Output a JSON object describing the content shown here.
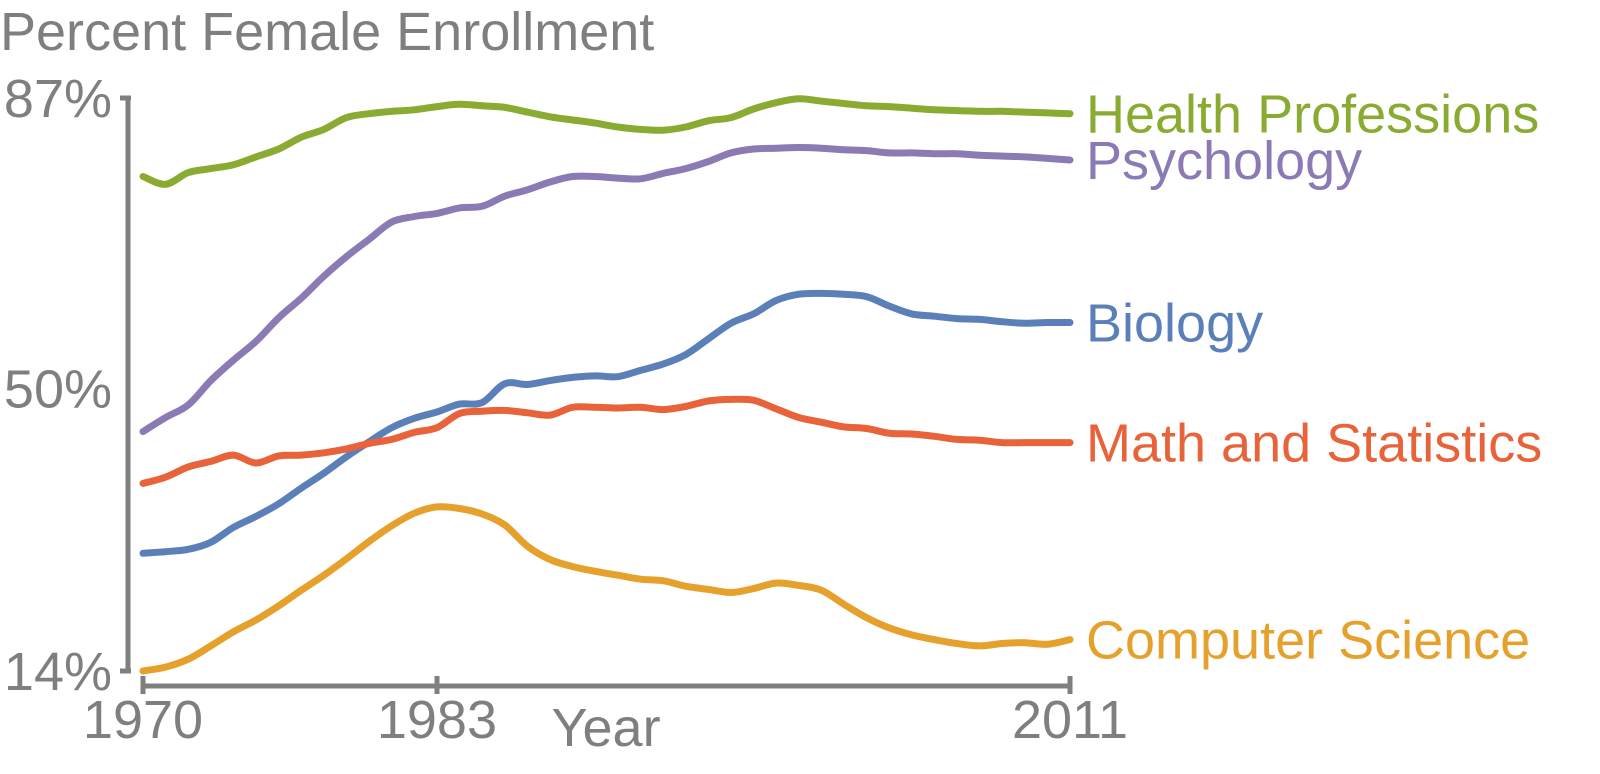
{
  "chart_data": {
    "type": "line",
    "title": "Percent Female Enrollment",
    "xlabel": "Year",
    "ylabel": "",
    "xlim": [
      1970,
      2011
    ],
    "ylim": [
      14,
      87
    ],
    "x_ticks": [
      1970,
      1983,
      2011
    ],
    "y_ticks": [
      {
        "value": 87,
        "label": "87%"
      },
      {
        "value": 50,
        "label": "50%"
      },
      {
        "value": 14,
        "label": "14%"
      }
    ],
    "grid": false,
    "legend": "labels at line ends (right)",
    "x": [
      1970,
      1971,
      1972,
      1973,
      1974,
      1975,
      1976,
      1977,
      1978,
      1979,
      1980,
      1981,
      1982,
      1983,
      1984,
      1985,
      1986,
      1987,
      1988,
      1989,
      1990,
      1991,
      1992,
      1993,
      1994,
      1995,
      1996,
      1997,
      1998,
      1999,
      2000,
      2001,
      2002,
      2003,
      2004,
      2005,
      2006,
      2007,
      2008,
      2009,
      2010,
      2011
    ],
    "series": [
      {
        "name": "Health Professions",
        "color": "#8aab32",
        "values": [
          77.0,
          76.0,
          77.5,
          78.0,
          78.5,
          79.5,
          80.5,
          82.0,
          83.0,
          84.5,
          85.0,
          85.3,
          85.5,
          85.9,
          86.2,
          86.0,
          85.8,
          85.2,
          84.6,
          84.2,
          83.8,
          83.3,
          83.0,
          82.9,
          83.3,
          84.1,
          84.5,
          85.6,
          86.4,
          86.9,
          86.6,
          86.3,
          86.0,
          85.9,
          85.7,
          85.5,
          85.4,
          85.3,
          85.3,
          85.2,
          85.1,
          85.0
        ]
      },
      {
        "name": "Psychology",
        "color": "#8c7ab5",
        "values": [
          44.5,
          46.3,
          47.9,
          51.0,
          53.6,
          56.0,
          59.0,
          61.5,
          64.3,
          66.8,
          69.0,
          71.2,
          71.9,
          72.3,
          73.0,
          73.2,
          74.5,
          75.3,
          76.3,
          77.0,
          77.0,
          76.8,
          76.7,
          77.4,
          78.0,
          78.9,
          80.0,
          80.5,
          80.6,
          80.7,
          80.6,
          80.4,
          80.3,
          80.0,
          80.0,
          79.9,
          79.9,
          79.7,
          79.6,
          79.5,
          79.3,
          79.1
        ]
      },
      {
        "name": "Biology",
        "color": "#5b80b9",
        "values": [
          29.0,
          29.2,
          29.5,
          30.4,
          32.3,
          33.7,
          35.3,
          37.3,
          39.2,
          41.3,
          43.2,
          45.0,
          46.2,
          47.0,
          48.0,
          48.2,
          50.6,
          50.5,
          51.0,
          51.4,
          51.6,
          51.5,
          52.3,
          53.1,
          54.3,
          56.3,
          58.3,
          59.5,
          61.2,
          62.0,
          62.1,
          62.0,
          61.7,
          60.5,
          59.5,
          59.2,
          58.9,
          58.8,
          58.5,
          58.3,
          58.4,
          58.4
        ]
      },
      {
        "name": "Math and Statistics",
        "color": "#e8623a",
        "values": [
          37.9,
          38.7,
          40.0,
          40.7,
          41.5,
          40.5,
          41.4,
          41.5,
          41.8,
          42.3,
          43.0,
          43.5,
          44.4,
          45.0,
          46.8,
          47.1,
          47.2,
          46.9,
          46.6,
          47.6,
          47.6,
          47.5,
          47.6,
          47.3,
          47.7,
          48.4,
          48.6,
          48.5,
          47.4,
          46.3,
          45.7,
          45.1,
          44.9,
          44.3,
          44.2,
          43.9,
          43.5,
          43.4,
          43.1,
          43.1,
          43.1,
          43.1
        ]
      },
      {
        "name": "Computer Science",
        "color": "#e5a12c",
        "values": [
          14.0,
          14.5,
          15.5,
          17.2,
          19.0,
          20.5,
          22.3,
          24.3,
          26.2,
          28.3,
          30.5,
          32.5,
          34.1,
          34.9,
          34.7,
          34.0,
          32.6,
          29.9,
          28.2,
          27.3,
          26.7,
          26.2,
          25.7,
          25.5,
          24.8,
          24.4,
          24.0,
          24.5,
          25.2,
          24.9,
          24.3,
          22.5,
          20.8,
          19.5,
          18.6,
          18.0,
          17.5,
          17.2,
          17.5,
          17.6,
          17.4,
          18.0
        ]
      }
    ]
  }
}
